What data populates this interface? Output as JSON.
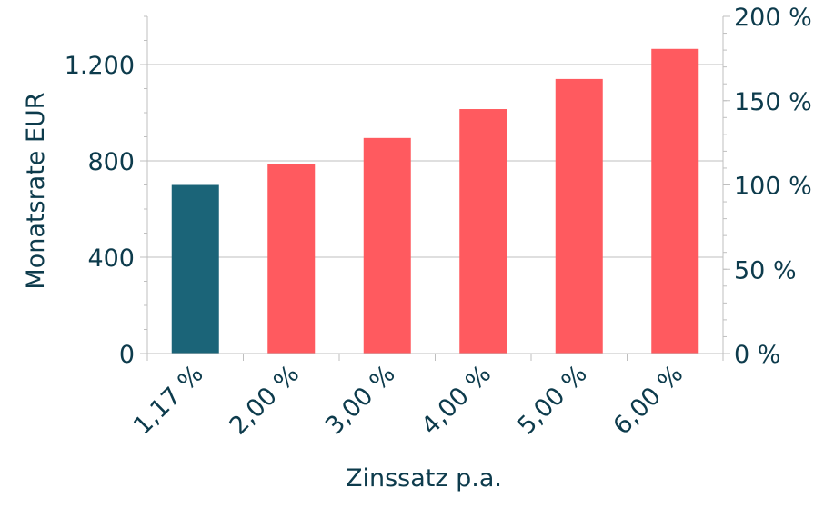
{
  "chart_data": {
    "type": "bar",
    "categories": [
      "1,17 %",
      "2,00 %",
      "3,00 %",
      "4,00 %",
      "5,00 %",
      "6,00 %"
    ],
    "values": [
      700,
      785,
      895,
      1015,
      1140,
      1265
    ],
    "bar_colors": [
      "#1b6478",
      "#ff5a5f",
      "#ff5a5f",
      "#ff5a5f",
      "#ff5a5f",
      "#ff5a5f"
    ],
    "xlabel": "Zinssatz p.a.",
    "ylabel": "Monatsrate EUR",
    "ylim": [
      0,
      1400
    ],
    "y_ticks": [
      0,
      400,
      800,
      1200
    ],
    "y_tick_labels": [
      "0",
      "400",
      "800",
      "1.200"
    ],
    "y2lim": [
      0,
      200
    ],
    "y2_ticks": [
      0,
      50,
      100,
      150,
      200
    ],
    "y2_tick_labels": [
      "0 %",
      "50 %",
      "100 %",
      "150 %",
      "200 %"
    ],
    "grid": true,
    "text_color": "#0d3b4c",
    "grid_color": "#bfbfbf"
  }
}
